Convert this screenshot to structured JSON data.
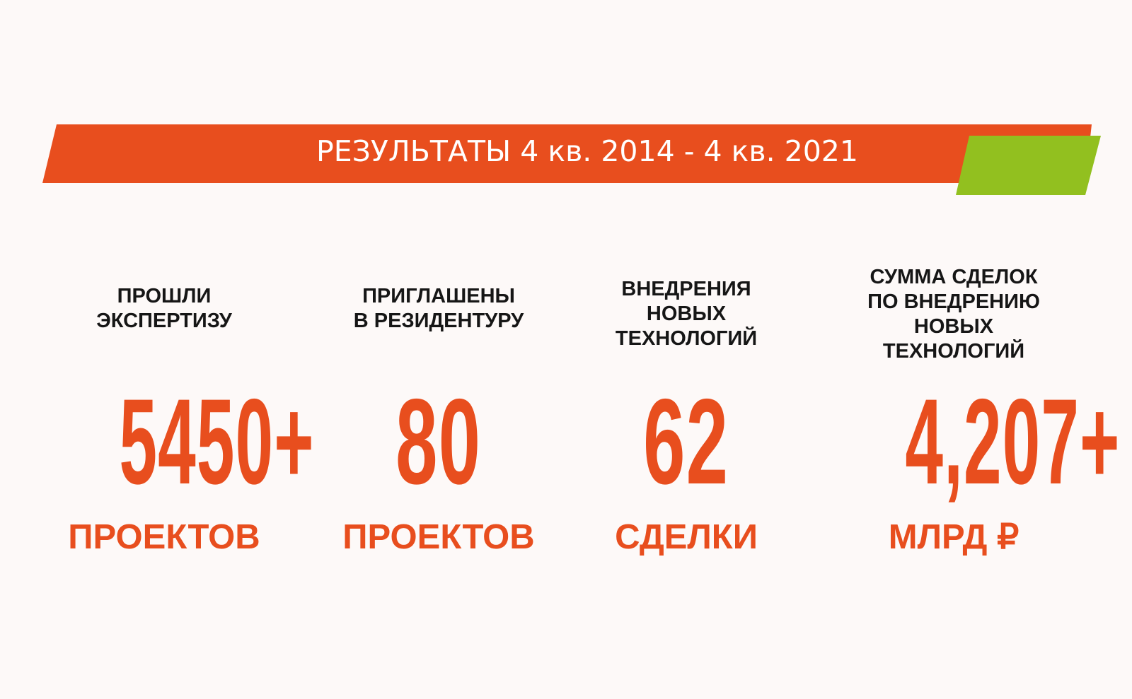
{
  "banner": {
    "title": "РЕЗУЛЬТАТЫ 4 кв. 2014 - 4 кв. 2021",
    "main_color": "#e84e1e",
    "accent_color": "#92c01f"
  },
  "stats": [
    {
      "label_lines": [
        "ПРОШЛИ",
        "ЭКСПЕРТИЗУ"
      ],
      "value": "5450+",
      "unit": "ПРОЕКТОВ"
    },
    {
      "label_lines": [
        "ПРИГЛАШЕНЫ",
        "В РЕЗИДЕНТУРУ"
      ],
      "value": "80",
      "unit": "ПРОЕКТОВ"
    },
    {
      "label_lines": [
        "ВНЕДРЕНИЯ",
        "НОВЫХ",
        "ТЕХНОЛОГИЙ"
      ],
      "value": "62",
      "unit": "СДЕЛКИ"
    },
    {
      "label_lines": [
        "СУММА СДЕЛОК",
        "ПО ВНЕДРЕНИЮ",
        "НОВЫХ",
        "ТЕХНОЛОГИЙ"
      ],
      "value": "4,207+",
      "unit": "МЛРД ₽"
    }
  ],
  "colors": {
    "value_color": "#e84e1e",
    "label_color": "#161616",
    "background": "#fdf9f8"
  }
}
